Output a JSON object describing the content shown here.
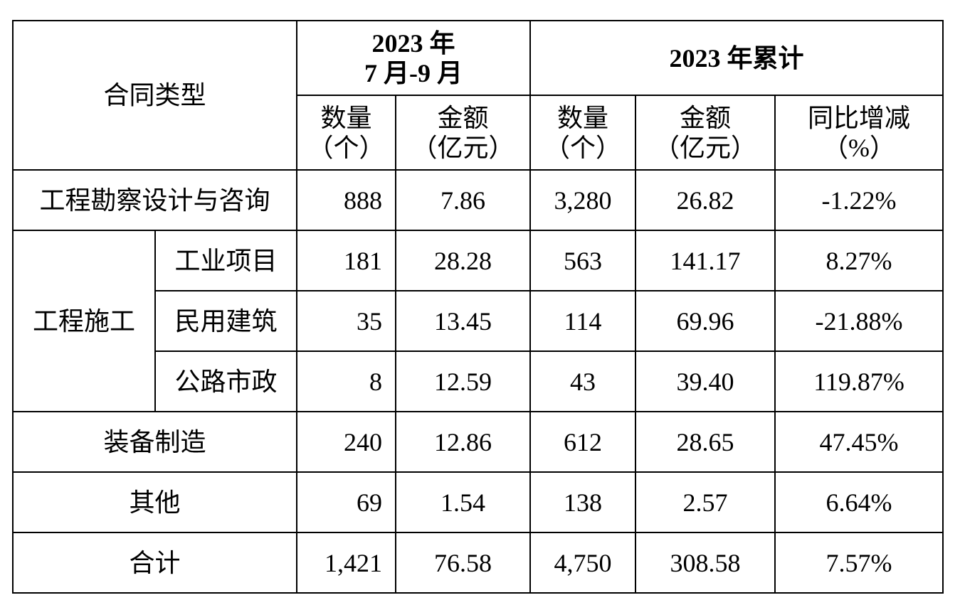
{
  "table": {
    "header": {
      "type_label": "合同类型",
      "period_quarter": [
        "2023 年",
        "7 月-9 月"
      ],
      "period_ytd": "2023 年累计",
      "columns": [
        [
          "数量",
          "（个）"
        ],
        [
          "金额",
          "（亿元）"
        ],
        [
          "数量",
          "（个）"
        ],
        [
          "金额",
          "（亿元）"
        ],
        [
          "同比增减",
          "（%）"
        ]
      ]
    },
    "rows": [
      {
        "label": "工程勘察设计与咨询",
        "values": [
          "888",
          "7.86",
          "3,280",
          "26.82",
          "-1.22%"
        ]
      },
      {
        "group": "工程施工",
        "label": "工业项目",
        "values": [
          "181",
          "28.28",
          "563",
          "141.17",
          "8.27%"
        ]
      },
      {
        "label": "民用建筑",
        "values": [
          "35",
          "13.45",
          "114",
          "69.96",
          "-21.88%"
        ]
      },
      {
        "label": "公路市政",
        "values": [
          "8",
          "12.59",
          "43",
          "39.40",
          "119.87%"
        ]
      },
      {
        "label": "装备制造",
        "values": [
          "240",
          "12.86",
          "612",
          "28.65",
          "47.45%"
        ]
      },
      {
        "label": "其他",
        "values": [
          "69",
          "1.54",
          "138",
          "2.57",
          "6.64%"
        ]
      },
      {
        "label": "合计",
        "values": [
          "1,421",
          "76.58",
          "4,750",
          "308.58",
          "7.57%"
        ]
      }
    ]
  }
}
